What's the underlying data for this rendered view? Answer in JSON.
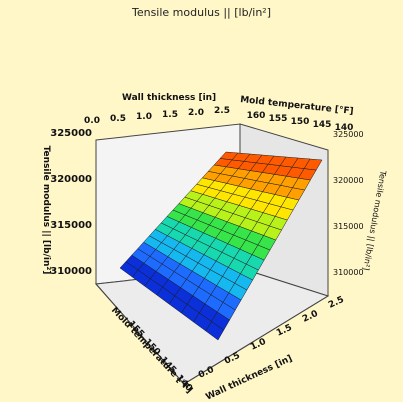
{
  "chart_data": {
    "type": "surface",
    "title": "Tensile modulus || [lb/in²]",
    "x_axis": {
      "label": "Wall thickness [in]",
      "ticks": [
        "0.0",
        "0.5",
        "1.0",
        "1.5",
        "2.0",
        "2.5"
      ],
      "range": [
        0.0,
        2.5
      ]
    },
    "y_axis": {
      "label": "Mold temperature [°F]",
      "ticks": [
        "160",
        "155",
        "150",
        "145",
        "140"
      ],
      "range": [
        140,
        160
      ]
    },
    "z_axis": {
      "label": "Tensile modulus || [lb/in²]",
      "label_right": "Tensile modulus || [lb/in²]",
      "ticks": [
        "310000",
        "315000",
        "320000",
        "325000"
      ],
      "ticks_right": [
        "310000",
        "315000",
        "320000",
        "325000"
      ],
      "range": [
        308000,
        328000
      ]
    },
    "front_x_axis": {
      "label": "Wall thickness [in]",
      "ticks": [
        "0.0",
        "0.5",
        "1.0",
        "1.5",
        "2.0",
        "2.5"
      ]
    },
    "front_y_axis": {
      "label": "Mold temperature [°F]",
      "ticks": [
        "140",
        "145",
        "150",
        "155"
      ]
    },
    "surface": {
      "description_values": {
        "min_z": 308500,
        "max_z": 326000
      },
      "colormap": [
        "#0b2fd8",
        "#1e6bff",
        "#16b8f0",
        "#18d8b0",
        "#37e54a",
        "#b8f21a",
        "#ffe600",
        "#ffa000",
        "#ff5a00"
      ]
    },
    "grid": true
  }
}
